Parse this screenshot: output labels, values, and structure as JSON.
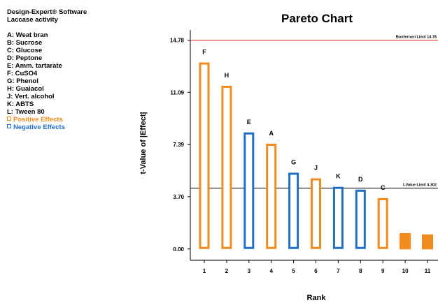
{
  "legend": {
    "software": "Design-Expert® Software",
    "response": "Laccase activity",
    "factors": [
      "A: Weat bran",
      "B: Sucrose",
      "C: Glucose",
      "D: Peptone",
      "E: Amm. tartarate",
      "F: CuSO4",
      "G: Phenol",
      "H: Guaiacol",
      "J: Vert. alcohol",
      "K: ABTS",
      "L: Tween 80"
    ],
    "effects": [
      {
        "label": "Positive Effects",
        "color": "#f28a1c"
      },
      {
        "label": "Negative Effects",
        "color": "#1f6fc6"
      }
    ]
  },
  "chart_data": {
    "type": "bar",
    "title": "Pareto Chart",
    "xlabel": "Rank",
    "ylabel": "t-Value of |Effect|",
    "ylim": [
      -0.8,
      15.5
    ],
    "yticks": [
      {
        "value": 0,
        "label": "0.00"
      },
      {
        "value": 3.7,
        "label": "3.70"
      },
      {
        "value": 7.39,
        "label": "7.39"
      },
      {
        "value": 11.09,
        "label": "11.09"
      },
      {
        "value": 14.78,
        "label": "14.78"
      }
    ],
    "categories": [
      "1",
      "2",
      "3",
      "4",
      "5",
      "6",
      "7",
      "8",
      "9",
      "10",
      "11"
    ],
    "bar_labels": [
      "F",
      "H",
      "E",
      "A",
      "G",
      "J",
      "K",
      "D",
      "C",
      "",
      ""
    ],
    "values": [
      13.2,
      11.55,
      8.25,
      7.45,
      5.4,
      5.0,
      4.4,
      4.2,
      3.6,
      1.1,
      1.0
    ],
    "signs": [
      "positive",
      "positive",
      "negative",
      "positive",
      "negative",
      "positive",
      "negative",
      "negative",
      "positive",
      "positive",
      "positive"
    ],
    "outlined": [
      true,
      true,
      true,
      true,
      true,
      true,
      true,
      true,
      true,
      false,
      false
    ],
    "reference_lines": [
      {
        "label": "Bonferroni Limit 14.78",
        "value": 14.78,
        "color": "#e0262a"
      },
      {
        "label": "t-Value Limit 4.302",
        "value": 4.302,
        "color": "#000000"
      }
    ],
    "colors": {
      "positive": "#f28a1c",
      "negative": "#1f6fc6"
    },
    "grid": false,
    "legend_position": "left"
  }
}
